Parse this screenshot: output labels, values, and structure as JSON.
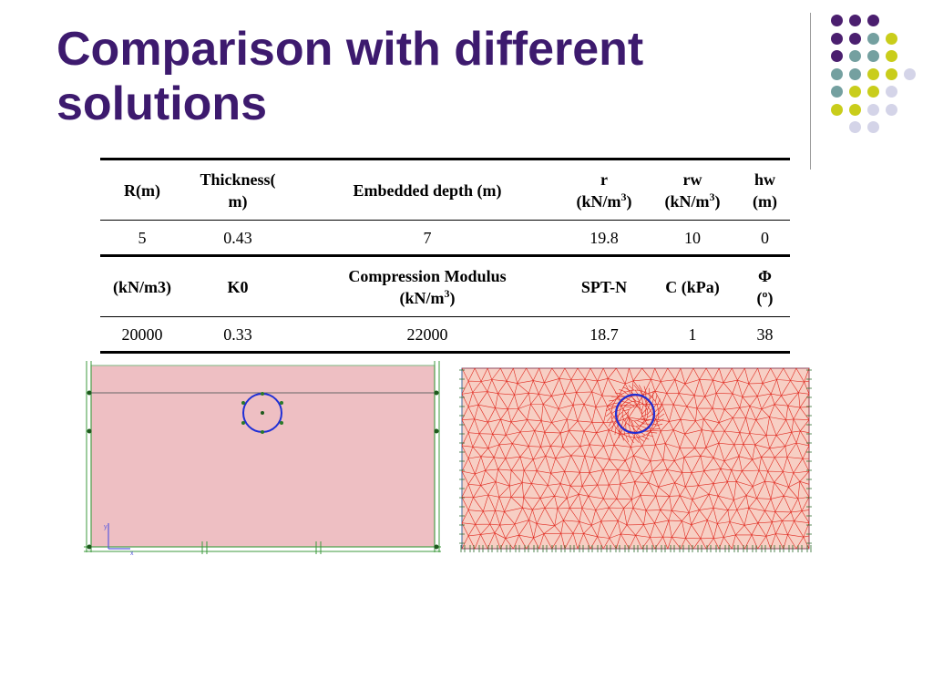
{
  "slide": {
    "title_line1": "Comparison with different",
    "title_line2": "solutions"
  },
  "table": {
    "row1_headers": [
      "R(m)",
      "Thickness(",
      "m)",
      "Embedded depth (m)",
      "r",
      "(kN/m",
      "3",
      ")",
      "rw",
      "(kN/m",
      "3",
      ")",
      "hw",
      "(m)"
    ],
    "row1_values": [
      "5",
      "0.43",
      "7",
      "19.8",
      "10",
      "0"
    ],
    "row2_headers": [
      "(kN/m3)",
      "K0",
      "Compression Modulus",
      "(kN/m",
      "3",
      ")",
      "SPT-N",
      "C (kPa)",
      "Φ",
      "(º)"
    ],
    "row2_values": [
      "20000",
      "0.33",
      "22000",
      "18.7",
      "1",
      "38"
    ]
  },
  "figures": {
    "geometry_model": {
      "axis_y_label": "y",
      "axis_x_label": "x"
    },
    "fe_mesh": {}
  },
  "colors": {
    "title": "#3d1a6e",
    "dot_purple": "#4b1f6f",
    "dot_teal": "#74a0a0",
    "dot_yellow": "#c9cd1b",
    "dot_lavender": "#d4d4e8",
    "soil_fill": "#eebfc3",
    "mesh_line": "#e0281e",
    "mesh_fill": "#f7cfc4",
    "tunnel_ring": "#1f2fd6"
  }
}
